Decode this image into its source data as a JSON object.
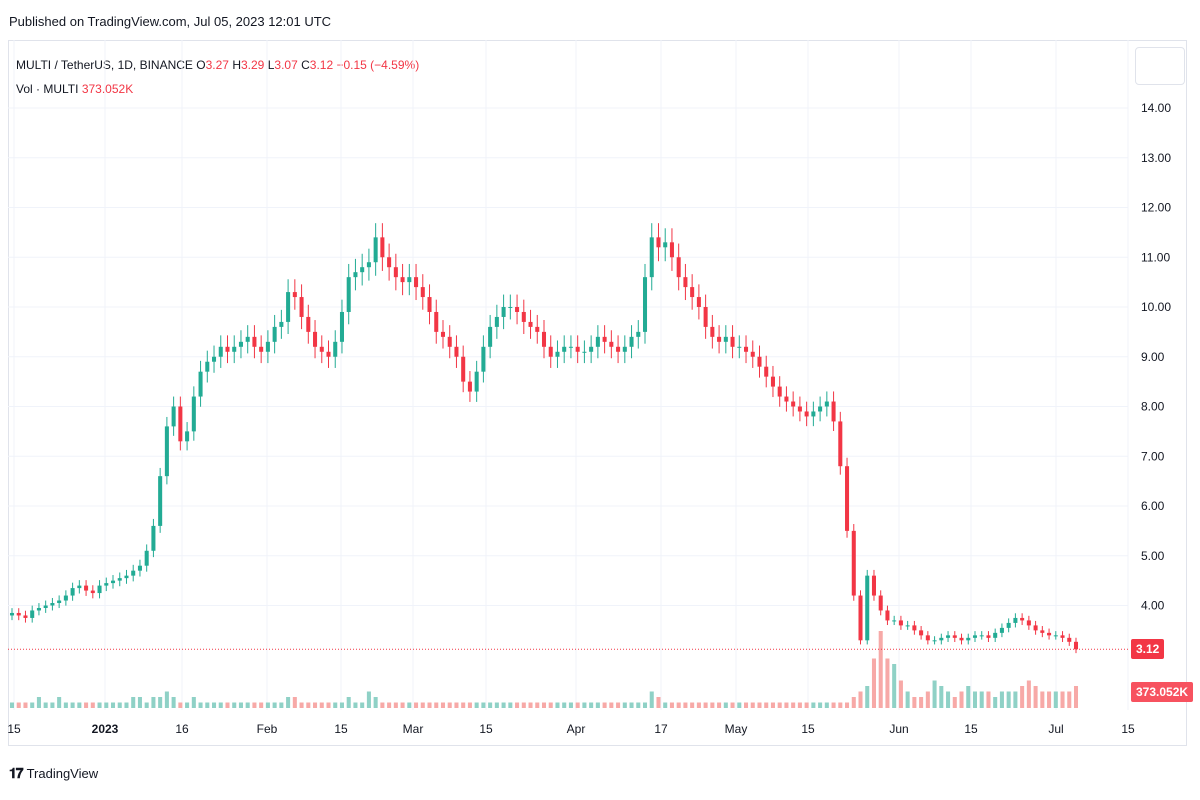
{
  "header": {
    "published": "Published on TradingView.com, Jul 05, 2023 12:01 UTC"
  },
  "legend": {
    "symbol": "MULTI / TetherUS, 1D, BINANCE",
    "o_label": "O",
    "o_value": "3.27",
    "h_label": "H",
    "h_value": "3.29",
    "l_label": "L",
    "l_value": "3.07",
    "c_label": "C",
    "c_value": "3.12",
    "change": "−0.15 (−4.59%)",
    "vol_label": "Vol · MULTI",
    "vol_value": "373.052K"
  },
  "badges": {
    "last_price": "3.12",
    "last_volume": "373.052K"
  },
  "footer": {
    "brand": "TradingView"
  },
  "colors": {
    "up": "#22ab94",
    "down": "#f23645",
    "up_vol": "#8fd1c6",
    "down_vol": "#f7a9a7",
    "grid": "#f0f3fa",
    "axis_text": "#131722"
  },
  "chart_data": {
    "type": "candlestick",
    "symbol": "MULTI / TetherUS",
    "interval": "1D",
    "exchange": "BINANCE",
    "y_axis": {
      "ticks": [
        "14.00",
        "13.00",
        "12.00",
        "11.00",
        "10.00",
        "9.00",
        "8.00",
        "7.00",
        "6.00",
        "5.00",
        "4.00"
      ],
      "range": [
        2.5,
        14.2
      ]
    },
    "x_axis": {
      "ticks": [
        "15",
        "2023",
        "16",
        "Feb",
        "15",
        "Mar",
        "15",
        "Apr",
        "17",
        "May",
        "15",
        "Jun",
        "15",
        "Jul",
        "15"
      ]
    },
    "last_price": 3.12,
    "close_series": [
      3.85,
      3.8,
      3.75,
      3.9,
      3.95,
      4.0,
      4.05,
      4.1,
      4.2,
      4.35,
      4.4,
      4.3,
      4.25,
      4.4,
      4.45,
      4.5,
      4.55,
      4.6,
      4.7,
      4.8,
      5.1,
      5.6,
      6.6,
      7.6,
      8.0,
      7.3,
      7.5,
      8.2,
      8.7,
      8.9,
      9.0,
      9.2,
      9.1,
      9.2,
      9.3,
      9.4,
      9.2,
      9.1,
      9.3,
      9.6,
      9.7,
      10.3,
      10.2,
      9.8,
      9.5,
      9.2,
      9.1,
      9.0,
      9.3,
      9.9,
      10.6,
      10.7,
      10.8,
      10.9,
      11.4,
      11.0,
      10.8,
      10.6,
      10.5,
      10.6,
      10.4,
      10.2,
      9.9,
      9.5,
      9.4,
      9.2,
      9.0,
      8.5,
      8.3,
      8.7,
      9.2,
      9.6,
      9.8,
      10.0,
      10.0,
      9.9,
      9.7,
      9.6,
      9.5,
      9.2,
      9.0,
      9.1,
      9.2,
      9.2,
      9.1,
      9.1,
      9.2,
      9.4,
      9.3,
      9.2,
      9.1,
      9.2,
      9.4,
      9.5,
      10.6,
      11.4,
      11.2,
      11.3,
      11.0,
      10.6,
      10.4,
      10.2,
      10.0,
      9.6,
      9.4,
      9.3,
      9.4,
      9.2,
      9.2,
      9.1,
      9.0,
      8.8,
      8.6,
      8.4,
      8.2,
      8.1,
      8.0,
      7.9,
      7.8,
      7.9,
      8.0,
      8.1,
      7.7,
      6.8,
      5.5,
      4.2,
      3.3,
      4.6,
      4.2,
      3.9,
      3.7,
      3.7,
      3.6,
      3.6,
      3.5,
      3.4,
      3.3,
      3.3,
      3.35,
      3.4,
      3.35,
      3.3,
      3.35,
      3.4,
      3.4,
      3.35,
      3.45,
      3.55,
      3.65,
      3.75,
      3.7,
      3.6,
      3.5,
      3.45,
      3.4,
      3.4,
      3.35,
      3.27,
      3.12
    ],
    "volume_series": [
      1,
      1,
      1,
      1,
      2,
      1,
      1,
      2,
      1,
      1,
      1,
      1,
      1,
      1,
      1,
      1,
      1,
      1,
      2,
      2,
      1,
      2,
      2,
      3,
      2,
      1,
      1,
      2,
      1,
      1,
      1,
      1,
      1,
      1,
      1,
      1,
      1,
      1,
      1,
      1,
      1,
      2,
      2,
      1,
      1,
      1,
      1,
      1,
      1,
      1,
      2,
      1,
      1,
      3,
      2,
      1,
      1,
      1,
      1,
      1,
      1,
      1,
      1,
      1,
      1,
      1,
      1,
      1,
      1,
      1,
      1,
      1,
      1,
      1,
      1,
      1,
      1,
      1,
      1,
      1,
      1,
      1,
      1,
      1,
      1,
      1,
      1,
      1,
      1,
      1,
      1,
      1,
      1,
      1,
      1,
      3,
      2,
      1,
      1,
      1,
      1,
      1,
      1,
      1,
      1,
      1,
      1,
      1,
      1,
      1,
      1,
      1,
      1,
      1,
      1,
      1,
      1,
      1,
      1,
      1,
      1,
      1,
      1,
      1,
      1,
      2,
      3,
      4,
      9,
      14,
      9,
      8,
      5,
      3,
      2,
      2,
      3,
      5,
      4,
      3,
      2,
      3,
      4,
      3,
      3,
      3,
      2,
      3,
      3,
      3,
      4,
      5,
      4,
      3,
      3,
      3,
      3,
      3,
      4,
      4
    ]
  }
}
